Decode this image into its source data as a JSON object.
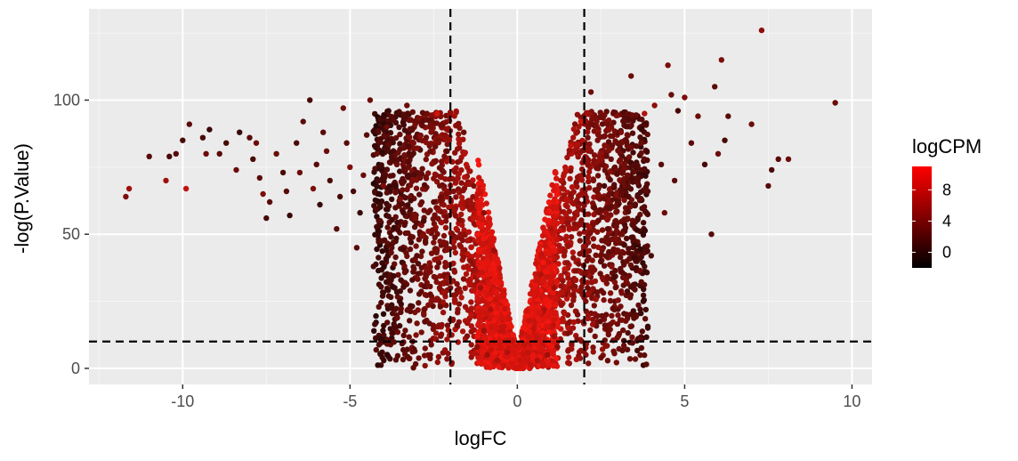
{
  "chart_data": {
    "type": "scatter",
    "title": "",
    "xlabel": "logFC",
    "ylabel": "-log(P.Value)",
    "xlim": [
      -12.8,
      10.6
    ],
    "ylim": [
      -6,
      134
    ],
    "x_ticks": [
      -10,
      -5,
      0,
      5,
      10
    ],
    "x_tick_labels": [
      "-10",
      "-5",
      "0",
      "5",
      "10"
    ],
    "y_ticks": [
      0,
      50,
      100
    ],
    "y_tick_labels": [
      "0",
      "50",
      "100"
    ],
    "grid": true,
    "panel_background": "#ebebeb",
    "reference_lines": {
      "vertical": [
        -2,
        2
      ],
      "horizontal": [
        10
      ],
      "style": "dashed"
    },
    "color_scale": {
      "title": "logCPM",
      "low": "#000000",
      "high": "#ff0000",
      "domain": [
        -2,
        11
      ],
      "ticks": [
        0,
        4,
        8
      ],
      "tick_labels": [
        "0",
        "4",
        "8"
      ]
    },
    "legend_position": "right",
    "points": [
      [
        -11.7,
        64,
        4
      ],
      [
        -11.6,
        67,
        6
      ],
      [
        -11,
        79,
        2
      ],
      [
        -10.5,
        70,
        6
      ],
      [
        -10.4,
        79,
        1
      ],
      [
        -10.2,
        80,
        2
      ],
      [
        -10,
        85,
        1
      ],
      [
        -9.9,
        67,
        8
      ],
      [
        -9.8,
        91,
        2
      ],
      [
        -9.4,
        86,
        1
      ],
      [
        -9.3,
        80,
        3
      ],
      [
        -9.2,
        89,
        0
      ],
      [
        -8.9,
        80,
        2
      ],
      [
        -8.7,
        84,
        1
      ],
      [
        -8.4,
        74,
        3
      ],
      [
        -8.3,
        88,
        0
      ],
      [
        -8.0,
        86,
        2
      ],
      [
        -7.9,
        78,
        1
      ],
      [
        -7.8,
        84,
        3
      ],
      [
        -7.7,
        71,
        2
      ],
      [
        -7.6,
        65,
        4
      ],
      [
        -7.5,
        56,
        1
      ],
      [
        -7.4,
        62,
        2
      ],
      [
        -7.2,
        80,
        3
      ],
      [
        -7.0,
        73,
        1
      ],
      [
        -6.9,
        66,
        2
      ],
      [
        -6.8,
        57,
        0
      ],
      [
        -6.6,
        84,
        1
      ],
      [
        -6.5,
        73,
        3
      ],
      [
        -6.4,
        92,
        2
      ],
      [
        -6.2,
        100,
        1
      ],
      [
        -6.1,
        67,
        4
      ],
      [
        -6.0,
        76,
        2
      ],
      [
        -5.9,
        61,
        0
      ],
      [
        -5.8,
        88,
        2
      ],
      [
        -5.7,
        81,
        3
      ],
      [
        -5.6,
        70,
        1
      ],
      [
        -5.4,
        52,
        2
      ],
      [
        -5.3,
        64,
        1
      ],
      [
        -5.2,
        97,
        3
      ],
      [
        -5.1,
        84,
        2
      ],
      [
        -5.0,
        75,
        4
      ],
      [
        -4.9,
        66,
        1
      ],
      [
        -4.8,
        45,
        2
      ],
      [
        -4.7,
        58,
        0
      ],
      [
        -4.6,
        72,
        3
      ],
      [
        -4.5,
        87,
        2
      ],
      [
        -4.4,
        100,
        3
      ],
      [
        -4.3,
        38,
        1
      ],
      [
        -4.2,
        80,
        3
      ],
      [
        -4.1,
        55,
        2
      ],
      [
        -4.0,
        68,
        4
      ],
      [
        -3.9,
        90,
        3
      ],
      [
        -3.8,
        33,
        1
      ],
      [
        -3.7,
        47,
        2
      ],
      [
        -3.6,
        76,
        3
      ],
      [
        -3.5,
        63,
        4
      ],
      [
        -3.4,
        58,
        1
      ],
      [
        -3.3,
        98,
        3
      ],
      [
        -3.2,
        29,
        2
      ],
      [
        -3.1,
        84,
        4
      ],
      [
        -3.0,
        42,
        2
      ],
      [
        -2.9,
        71,
        3
      ],
      [
        -2.8,
        55,
        1
      ],
      [
        -2.7,
        95,
        3
      ],
      [
        -2.6,
        36,
        4
      ],
      [
        -2.5,
        62,
        2
      ],
      [
        -2.4,
        95,
        9
      ],
      [
        -2.3,
        23,
        3
      ],
      [
        -2.2,
        47,
        4
      ],
      [
        -2.1,
        81,
        2
      ],
      [
        -2.0,
        30,
        3
      ],
      [
        -1.9,
        66,
        4
      ],
      [
        -1.8,
        16,
        3
      ],
      [
        -1.7,
        50,
        5
      ],
      [
        -1.6,
        88,
        3
      ],
      [
        -1.5,
        12,
        4
      ],
      [
        -1.4,
        40,
        5
      ],
      [
        -1.3,
        68,
        4
      ],
      [
        -1.2,
        8,
        5
      ],
      [
        -1.1,
        30,
        6
      ],
      [
        -1.0,
        58,
        5
      ],
      [
        -0.9,
        5,
        6
      ],
      [
        -0.8,
        22,
        7
      ],
      [
        -0.7,
        44,
        6
      ],
      [
        -0.6,
        3,
        7
      ],
      [
        -0.5,
        14,
        8
      ],
      [
        -0.4,
        1,
        8
      ],
      [
        -0.3,
        6,
        7
      ],
      [
        -0.1,
        0.5,
        9
      ],
      [
        0.1,
        0.8,
        9
      ],
      [
        0.3,
        6,
        8
      ],
      [
        0.4,
        1.5,
        8
      ],
      [
        0.5,
        15,
        8
      ],
      [
        0.6,
        3,
        7
      ],
      [
        0.7,
        35,
        7
      ],
      [
        0.8,
        22,
        7
      ],
      [
        0.9,
        5,
        6
      ],
      [
        1.0,
        52,
        7
      ],
      [
        1.1,
        30,
        6
      ],
      [
        1.2,
        8,
        5
      ],
      [
        1.3,
        70,
        7
      ],
      [
        1.4,
        42,
        6
      ],
      [
        1.5,
        13,
        4
      ],
      [
        1.6,
        83,
        8
      ],
      [
        1.7,
        56,
        6
      ],
      [
        1.8,
        20,
        4
      ],
      [
        1.9,
        92,
        9
      ],
      [
        2.0,
        77,
        5
      ],
      [
        2.1,
        30,
        3
      ],
      [
        2.2,
        103,
        3
      ],
      [
        2.3,
        60,
        2
      ],
      [
        2.4,
        85,
        4
      ],
      [
        2.5,
        40,
        2
      ],
      [
        2.6,
        68,
        1
      ],
      [
        2.7,
        52,
        2
      ],
      [
        2.8,
        78,
        3
      ],
      [
        2.9,
        34,
        1
      ],
      [
        3.0,
        62,
        2
      ],
      [
        3.1,
        88,
        4
      ],
      [
        3.2,
        46,
        1
      ],
      [
        3.3,
        72,
        3
      ],
      [
        3.4,
        109,
        3
      ],
      [
        3.5,
        20,
        2
      ],
      [
        3.6,
        56,
        1
      ],
      [
        3.7,
        84,
        3
      ],
      [
        3.8,
        95,
        7
      ],
      [
        3.9,
        66,
        2
      ],
      [
        4.0,
        42,
        1
      ],
      [
        4.1,
        98,
        5
      ],
      [
        4.3,
        76,
        2
      ],
      [
        4.4,
        58,
        3
      ],
      [
        4.5,
        113,
        4
      ],
      [
        4.6,
        102,
        3
      ],
      [
        4.7,
        70,
        2
      ],
      [
        4.8,
        96,
        1
      ],
      [
        5.0,
        101,
        4
      ],
      [
        5.2,
        84,
        2
      ],
      [
        5.4,
        94,
        3
      ],
      [
        5.6,
        76,
        1
      ],
      [
        5.8,
        50,
        2
      ],
      [
        5.9,
        105,
        2
      ],
      [
        6.0,
        80,
        3
      ],
      [
        6.1,
        115,
        4
      ],
      [
        6.2,
        85,
        1
      ],
      [
        6.3,
        94,
        2
      ],
      [
        7.0,
        91,
        3
      ],
      [
        7.3,
        126,
        5
      ],
      [
        7.5,
        68,
        2
      ],
      [
        7.6,
        74,
        1
      ],
      [
        7.8,
        78,
        2
      ],
      [
        8.1,
        78,
        3
      ],
      [
        9.5,
        99,
        3
      ],
      [
        -2.6,
        5,
        3
      ],
      [
        2.5,
        4,
        3
      ],
      [
        -1.0,
        14,
        6
      ],
      [
        1.1,
        12,
        6
      ],
      [
        -0.2,
        2,
        9
      ],
      [
        0.2,
        1.8,
        9
      ],
      [
        0,
        0,
        9
      ]
    ],
    "regions": [
      {
        "note": "density cloud left",
        "xmin": -4.2,
        "xmax": -0.2,
        "n": 520
      },
      {
        "note": "density cloud right",
        "xmin": 0.2,
        "xmax": 3.9,
        "n": 520
      }
    ]
  }
}
